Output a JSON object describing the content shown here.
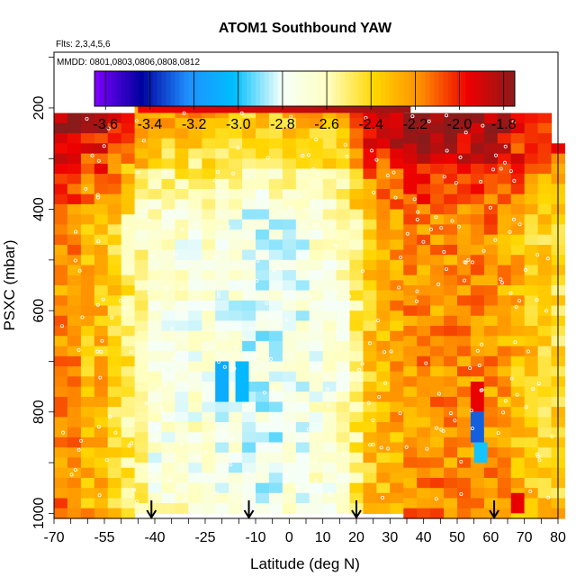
{
  "chart_data": {
    "type": "heatmap",
    "title": "ATOM1 Southbound YAW",
    "flights_label": "Flts: 2,3,4,5,6",
    "mmdd_label": "MMDD: 0801,0803,0806,0808,0812",
    "xlabel": "Latitude (deg N)",
    "ylabel": "PSXC (mbar)",
    "xlim": [
      -70,
      80
    ],
    "ylim": [
      1010,
      90
    ],
    "x_tick_labels": [
      "-70",
      "-55",
      "-40",
      "-25",
      "-10",
      "0",
      "10",
      "20",
      "30",
      "40",
      "50",
      "60",
      "70",
      "80"
    ],
    "y_tick_labels": [
      "200",
      "400",
      "600",
      "800",
      "1000"
    ],
    "y_ticks": [
      200,
      400,
      600,
      800,
      1000
    ],
    "colorbar": {
      "min": -3.65,
      "max": -1.75,
      "tick_labels": [
        "-3.6",
        "-3.4",
        "-3.2",
        "-3.0",
        "-2.8",
        "-2.6",
        "-2.4",
        "-2.2",
        "-2.0",
        "-1.8"
      ],
      "ticks": [
        -3.6,
        -3.4,
        -3.2,
        -3.0,
        -2.8,
        -2.6,
        -2.4,
        -2.2,
        -2.0,
        -1.8
      ],
      "colors": [
        "#7f00ff",
        "#00009f",
        "#1e90ff",
        "#00bfff",
        "#f5fffa",
        "#ffffc0",
        "#ffd700",
        "#ff8c00",
        "#ee0000",
        "#8b1a1a"
      ]
    },
    "arrow_latitudes": [
      -41,
      -12,
      20,
      61
    ],
    "columns": [
      {
        "lat": -68,
        "top": 210,
        "base": -2.2
      },
      {
        "lat": -64,
        "top": 210,
        "base": -2.2
      },
      {
        "lat": -60,
        "top": 210,
        "base": -2.3
      },
      {
        "lat": -56,
        "top": 210,
        "base": -2.3
      },
      {
        "lat": -52,
        "top": 210,
        "base": -2.4
      },
      {
        "lat": -48,
        "top": 210,
        "base": -2.5
      },
      {
        "lat": -44,
        "top": 180,
        "base": -2.6
      },
      {
        "lat": -40,
        "top": 180,
        "base": -2.7
      },
      {
        "lat": -36,
        "top": 180,
        "base": -2.7
      },
      {
        "lat": -32,
        "top": 180,
        "base": -2.7
      },
      {
        "lat": -28,
        "top": 180,
        "base": -2.7
      },
      {
        "lat": -24,
        "top": 180,
        "base": -2.7
      },
      {
        "lat": -20,
        "top": 180,
        "base": -2.75
      },
      {
        "lat": -16,
        "top": 180,
        "base": -2.75
      },
      {
        "lat": -12,
        "top": 180,
        "base": -2.8
      },
      {
        "lat": -8,
        "top": 180,
        "base": -2.8
      },
      {
        "lat": -4,
        "top": 180,
        "base": -2.8
      },
      {
        "lat": 0,
        "top": 180,
        "base": -2.75
      },
      {
        "lat": 4,
        "top": 180,
        "base": -2.75
      },
      {
        "lat": 8,
        "top": 180,
        "base": -2.7
      },
      {
        "lat": 12,
        "top": 180,
        "base": -2.7
      },
      {
        "lat": 16,
        "top": 180,
        "base": -2.65
      },
      {
        "lat": 20,
        "top": 180,
        "base": -2.5
      },
      {
        "lat": 24,
        "top": 180,
        "base": -2.35
      },
      {
        "lat": 28,
        "top": 180,
        "base": -2.3
      },
      {
        "lat": 32,
        "top": 180,
        "base": -2.25
      },
      {
        "lat": 36,
        "top": 210,
        "base": -2.2
      },
      {
        "lat": 40,
        "top": 210,
        "base": -2.2
      },
      {
        "lat": 44,
        "top": 210,
        "base": -2.2
      },
      {
        "lat": 48,
        "top": 210,
        "base": -2.2
      },
      {
        "lat": 52,
        "top": 210,
        "base": -2.2
      },
      {
        "lat": 56,
        "top": 210,
        "base": -2.2
      },
      {
        "lat": 60,
        "top": 210,
        "base": -2.2
      },
      {
        "lat": 64,
        "top": 210,
        "base": -2.25
      },
      {
        "lat": 68,
        "top": 210,
        "base": -2.3
      },
      {
        "lat": 72,
        "top": 210,
        "base": -2.35
      },
      {
        "lat": 76,
        "top": 210,
        "base": -2.4
      },
      {
        "lat": 80,
        "top": 270,
        "base": -2.4
      }
    ],
    "top_strip": {
      "lat_from": -45,
      "lat_to": 36,
      "p_from": 170,
      "p_to": 210,
      "value": -1.95
    },
    "anomalies": [
      {
        "lat": 56,
        "p_from": 740,
        "p_to": 800,
        "value": -1.95
      },
      {
        "lat": 56,
        "p_from": 800,
        "p_to": 860,
        "value": -3.3
      },
      {
        "lat": 57,
        "p_from": 860,
        "p_to": 900,
        "value": -3.0
      },
      {
        "lat": 68,
        "p_from": 960,
        "p_to": 1000,
        "value": -1.95
      },
      {
        "lat": -14,
        "p_from": 700,
        "p_to": 780,
        "value": -3.05
      },
      {
        "lat": -20,
        "p_from": 700,
        "p_to": 780,
        "value": -3.1
      }
    ]
  }
}
